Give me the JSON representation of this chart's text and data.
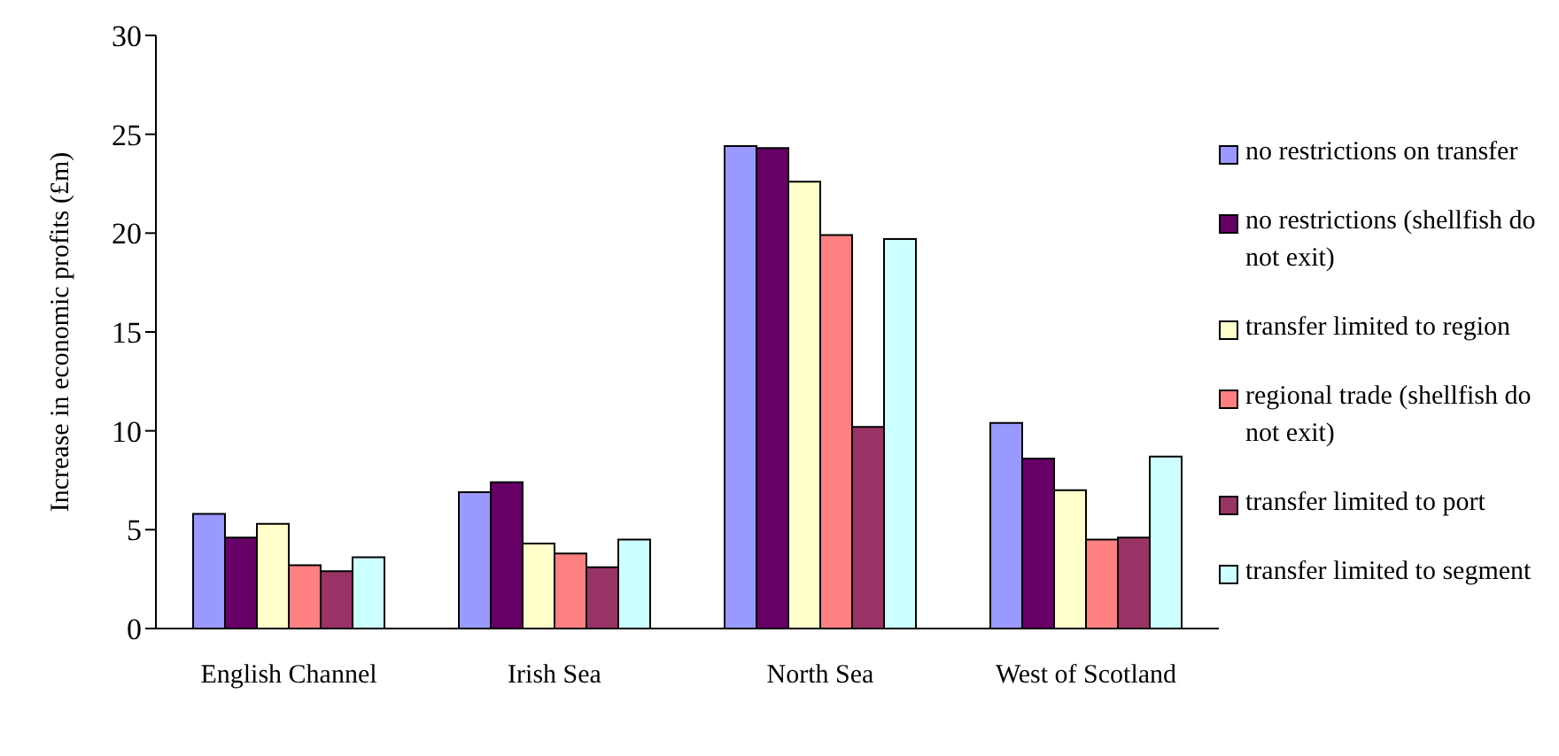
{
  "chart_data": {
    "type": "bar",
    "ylabel": "Increase in economic profits (£m)",
    "categories": [
      "English Channel",
      "Irish Sea",
      "North Sea",
      "West of Scotland"
    ],
    "series": [
      {
        "name": "no restrictions on transfer",
        "color": "#9999ff",
        "values": [
          5.8,
          6.9,
          24.4,
          10.4
        ]
      },
      {
        "name": "no restrictions (shellfish do not exit)",
        "color": "#660066",
        "values": [
          4.6,
          7.4,
          24.3,
          8.6
        ]
      },
      {
        "name": "transfer limited to region",
        "color": "#ffffcc",
        "values": [
          5.3,
          4.3,
          22.6,
          7.0
        ]
      },
      {
        "name": "regional trade (shellfish do not exit)",
        "color": "#ff8080",
        "values": [
          3.2,
          3.8,
          19.9,
          4.5
        ]
      },
      {
        "name": "transfer limited to port",
        "color": "#993366",
        "values": [
          2.9,
          3.1,
          10.2,
          4.6
        ]
      },
      {
        "name": "transfer limited to segment",
        "color": "#ccffff",
        "values": [
          3.6,
          4.5,
          19.7,
          8.7
        ]
      }
    ],
    "ylim": [
      0,
      30
    ],
    "yticks": [
      0,
      5,
      10,
      15,
      20,
      25,
      30
    ],
    "grid": false,
    "legend": "right"
  }
}
